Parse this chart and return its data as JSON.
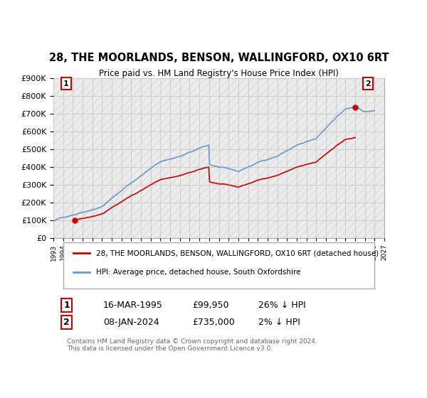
{
  "title": "28, THE MOORLANDS, BENSON, WALLINGFORD, OX10 6RT",
  "subtitle": "Price paid vs. HM Land Registry's House Price Index (HPI)",
  "legend_label_red": "28, THE MOORLANDS, BENSON, WALLINGFORD, OX10 6RT (detached house)",
  "legend_label_blue": "HPI: Average price, detached house, South Oxfordshire",
  "annotation1_label": "1",
  "annotation1_date": "16-MAR-1995",
  "annotation1_price": "£99,950",
  "annotation1_hpi": "26% ↓ HPI",
  "annotation2_label": "2",
  "annotation2_date": "08-JAN-2024",
  "annotation2_price": "£735,000",
  "annotation2_hpi": "2% ↓ HPI",
  "footer": "Contains HM Land Registry data © Crown copyright and database right 2024.\nThis data is licensed under the Open Government Licence v3.0.",
  "sale1_year": 1995.2,
  "sale1_price": 99950,
  "sale2_year": 2024.03,
  "sale2_price": 735000,
  "ylim_min": 0,
  "ylim_max": 900000,
  "xlim_min": 1993,
  "xlim_max": 2027,
  "red_color": "#cc0000",
  "blue_color": "#6699cc",
  "background_hatch_color": "#e8e8e8",
  "grid_color": "#cccccc"
}
